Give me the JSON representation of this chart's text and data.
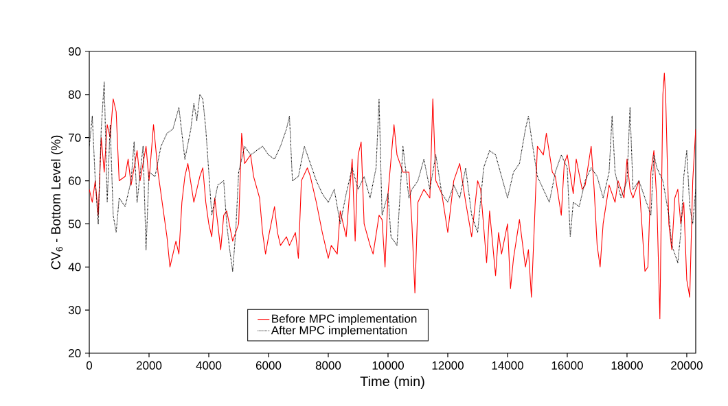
{
  "chart_data": {
    "type": "line",
    "xlabel": "Time (min)",
    "ylabel": "CV$_{6}$ - Bottom Level (%)",
    "xlim": [
      0,
      20300
    ],
    "ylim": [
      20,
      90
    ],
    "xticks": [
      0,
      2000,
      4000,
      6000,
      8000,
      10000,
      12000,
      14000,
      16000,
      18000,
      20000
    ],
    "yticks": [
      20,
      30,
      40,
      50,
      60,
      70,
      80,
      90
    ],
    "grid": false,
    "legend": "bottom",
    "series": [
      {
        "name": "Before MPC implementation",
        "color": "#ff0000",
        "line_style": "solid",
        "x": [
          0,
          100,
          200,
          300,
          400,
          500,
          600,
          700,
          800,
          900,
          1000,
          1200,
          1300,
          1400,
          1600,
          1700,
          1900,
          2000,
          2150,
          2300,
          2500,
          2600,
          2700,
          2900,
          3000,
          3100,
          3200,
          3300,
          3500,
          3700,
          3800,
          3900,
          4000,
          4100,
          4200,
          4400,
          4500,
          4600,
          4800,
          5000,
          5100,
          5200,
          5400,
          5500,
          5700,
          5800,
          5900,
          6000,
          6200,
          6300,
          6400,
          6600,
          6700,
          6900,
          7000,
          7100,
          7300,
          7400,
          7600,
          7800,
          8000,
          8100,
          8300,
          8400,
          8600,
          8800,
          8900,
          9000,
          9100,
          9200,
          9400,
          9500,
          9700,
          9800,
          9900,
          10000,
          10200,
          10300,
          10500,
          10700,
          10800,
          10900,
          11000,
          11200,
          11400,
          11500,
          11600,
          11800,
          12000,
          12200,
          12400,
          12600,
          12800,
          13000,
          13100,
          13300,
          13400,
          13600,
          13700,
          13800,
          14000,
          14100,
          14200,
          14400,
          14600,
          14700,
          14800,
          14900,
          15000,
          15200,
          15300,
          15500,
          15600,
          15800,
          15900,
          16000,
          16200,
          16300,
          16500,
          16600,
          16800,
          16900,
          17000,
          17100,
          17200,
          17400,
          17600,
          17700,
          17900,
          18000,
          18100,
          18200,
          18400,
          18600,
          18700,
          18800,
          18900,
          19000,
          19100,
          19200,
          19250,
          19300,
          19400,
          19500,
          19600,
          19700,
          19800,
          19900,
          20000,
          20100,
          20200,
          20300
        ],
        "values": [
          58,
          55,
          60,
          52,
          70,
          62,
          73,
          70,
          79,
          76,
          60,
          61,
          65,
          59,
          67,
          60,
          68,
          60,
          73,
          62,
          52,
          47,
          40,
          46,
          43,
          55,
          61,
          64,
          55,
          61,
          63,
          55,
          50,
          47,
          56,
          44,
          52,
          53,
          46,
          50,
          71,
          64,
          66,
          61,
          56,
          48,
          43,
          47,
          54,
          48,
          45,
          47,
          45,
          48,
          42,
          60,
          63,
          61,
          55,
          48,
          42,
          45,
          43,
          53,
          47,
          65,
          46,
          66,
          69,
          50,
          45,
          43,
          52,
          51,
          40,
          57,
          73,
          66,
          62,
          62,
          50,
          34,
          55,
          58,
          56,
          79,
          60,
          57,
          48,
          60,
          64,
          55,
          47,
          60,
          58,
          41,
          53,
          38,
          48,
          43,
          50,
          35,
          42,
          51,
          40,
          44,
          33,
          50,
          68,
          66,
          71,
          62,
          61,
          52,
          64,
          66,
          57,
          65,
          58,
          59,
          68,
          58,
          45,
          40,
          50,
          59,
          55,
          60,
          56,
          65,
          58,
          56,
          60,
          39,
          40,
          62,
          67,
          55,
          28,
          80,
          85,
          78,
          50,
          44,
          56,
          58,
          50,
          55,
          37,
          33,
          60,
          72
        ]
      },
      {
        "name": "After MPC implementation",
        "color": "#000000",
        "line_style": "dotted",
        "x": [
          0,
          100,
          200,
          300,
          400,
          500,
          600,
          700,
          800,
          900,
          1000,
          1200,
          1400,
          1500,
          1600,
          1800,
          1900,
          2000,
          2200,
          2400,
          2600,
          2800,
          3000,
          3200,
          3400,
          3500,
          3600,
          3700,
          3800,
          3900,
          4000,
          4100,
          4300,
          4500,
          4600,
          4700,
          4800,
          4900,
          5000,
          5200,
          5400,
          5600,
          5800,
          6000,
          6200,
          6400,
          6600,
          6700,
          6800,
          7000,
          7200,
          7400,
          7600,
          7800,
          8000,
          8200,
          8400,
          8600,
          8800,
          9000,
          9200,
          9400,
          9600,
          9700,
          9800,
          10000,
          10100,
          10300,
          10500,
          10700,
          10800,
          11000,
          11200,
          11400,
          11600,
          11800,
          12000,
          12200,
          12400,
          12600,
          12800,
          13000,
          13200,
          13400,
          13600,
          13800,
          14000,
          14200,
          14400,
          14600,
          14700,
          14800,
          15000,
          15200,
          15400,
          15600,
          15800,
          16000,
          16100,
          16200,
          16400,
          16600,
          16800,
          17000,
          17200,
          17400,
          17500,
          17600,
          17800,
          18000,
          18100,
          18200,
          18400,
          18600,
          18800,
          18900,
          19000,
          19200,
          19400,
          19500,
          19700,
          19800,
          19900,
          20000,
          20100,
          20200,
          20300
        ],
        "values": [
          68,
          75,
          60,
          50,
          72,
          83,
          55,
          73,
          52,
          48,
          56,
          54,
          60,
          69,
          55,
          68,
          44,
          62,
          61,
          68,
          71,
          72,
          77,
          65,
          72,
          78,
          74,
          80,
          79,
          72,
          62,
          52,
          59,
          60,
          50,
          44,
          39,
          48,
          62,
          68,
          66,
          67,
          68,
          66,
          65,
          68,
          72,
          75,
          60,
          61,
          68,
          64,
          60,
          57,
          55,
          58,
          50,
          57,
          63,
          58,
          61,
          56,
          63,
          79,
          52,
          57,
          47,
          45,
          68,
          56,
          58,
          60,
          65,
          58,
          66,
          57,
          55,
          59,
          56,
          63,
          52,
          48,
          63,
          67,
          66,
          61,
          56,
          62,
          64,
          72,
          75,
          70,
          61,
          58,
          55,
          62,
          66,
          63,
          47,
          55,
          54,
          60,
          63,
          61,
          56,
          62,
          75,
          62,
          56,
          60,
          77,
          58,
          60,
          56,
          52,
          66,
          63,
          60,
          52,
          45,
          41,
          48,
          61,
          67,
          54,
          50,
          58
        ]
      }
    ]
  }
}
